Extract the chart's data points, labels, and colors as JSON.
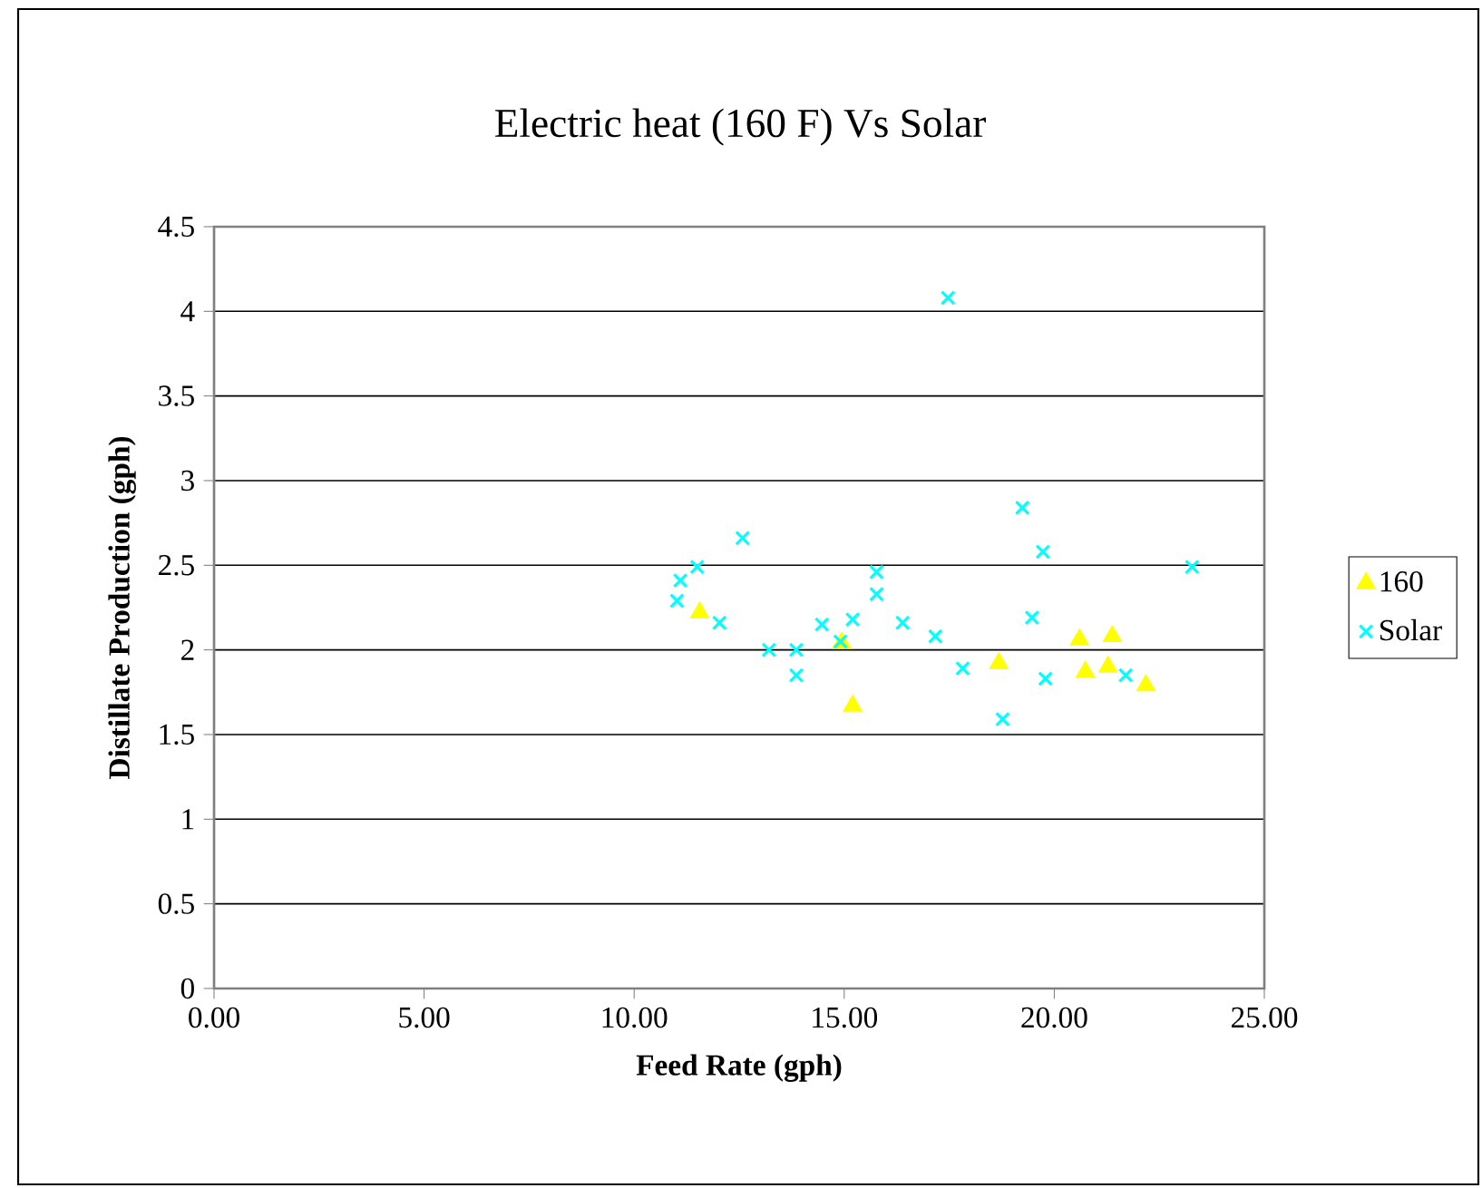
{
  "chart_data": {
    "type": "scatter",
    "title": "Electric heat (160 F) Vs Solar",
    "xlabel": "Feed Rate (gph)",
    "ylabel": "Distillate Production (gph)",
    "xlim": [
      0,
      25
    ],
    "ylim": [
      0,
      4.5
    ],
    "xticks": [
      {
        "value": 0,
        "label": "0.00"
      },
      {
        "value": 5,
        "label": "5.00"
      },
      {
        "value": 10,
        "label": "10.00"
      },
      {
        "value": 15,
        "label": "15.00"
      },
      {
        "value": 20,
        "label": "20.00"
      },
      {
        "value": 25,
        "label": "25.00"
      }
    ],
    "yticks": [
      0,
      0.5,
      1,
      1.5,
      2,
      2.5,
      3,
      3.5,
      4,
      4.5
    ],
    "grid": "y",
    "legend": "right",
    "series": [
      {
        "name": "160",
        "color": "#ffff00",
        "marker": "triangle",
        "x": [
          11.56,
          14.94,
          15.2,
          18.68,
          20.6,
          20.74,
          21.38,
          21.28,
          22.18
        ],
        "values": [
          2.22,
          2.04,
          1.67,
          1.92,
          2.06,
          1.87,
          2.08,
          1.9,
          1.79
        ]
      },
      {
        "name": "Solar",
        "color": "#00ffff",
        "marker": "cross",
        "x": [
          11.02,
          11.1,
          11.5,
          12.58,
          12.03,
          13.21,
          13.86,
          13.86,
          14.47,
          14.91,
          15.2,
          15.77,
          15.77,
          16.39,
          17.17,
          17.47,
          17.82,
          18.77,
          19.24,
          19.73,
          19.47,
          19.79,
          21.7,
          23.28
        ],
        "values": [
          2.29,
          2.41,
          2.49,
          2.66,
          2.16,
          2.0,
          2.0,
          1.85,
          2.15,
          2.05,
          2.18,
          2.46,
          2.33,
          2.16,
          2.08,
          4.08,
          1.89,
          1.59,
          2.84,
          2.58,
          2.19,
          1.83,
          1.85,
          2.49
        ]
      }
    ]
  }
}
